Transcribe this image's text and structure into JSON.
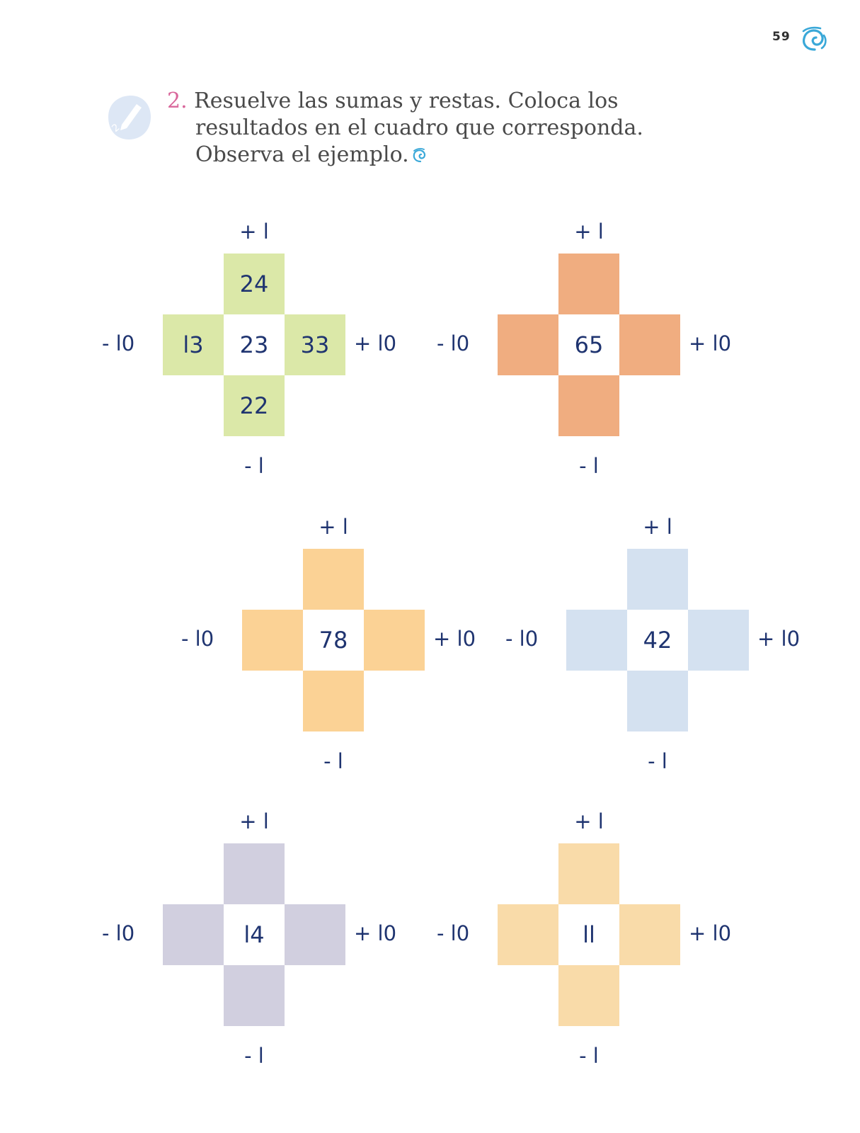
{
  "page_number": "59",
  "exercise": {
    "number": "2.",
    "line1": "Resuelve las sumas y restas. Coloca los",
    "line2": "resultados en el cuadro que corresponda.",
    "line3": "Observa el ejemplo."
  },
  "operations": {
    "plus_one": "+ l",
    "minus_one": "- l",
    "minus_ten": "- l0",
    "plus_ten": "+ l0"
  },
  "puzzles": [
    {
      "center": "23",
      "top": "24",
      "left": "l3",
      "right": "33",
      "bottom": "22",
      "color": "#dbe8a8"
    },
    {
      "center": "65",
      "top": "",
      "left": "",
      "right": "",
      "bottom": "",
      "color": "#f0ad80"
    },
    {
      "center": "78",
      "top": "",
      "left": "",
      "right": "",
      "bottom": "",
      "color": "#fbd295"
    },
    {
      "center": "42",
      "top": "",
      "left": "",
      "right": "",
      "bottom": "",
      "color": "#d4e1f0"
    },
    {
      "center": "l4",
      "top": "",
      "left": "",
      "right": "",
      "bottom": "",
      "color": "#d1cfdf"
    },
    {
      "center": "ll",
      "top": "",
      "left": "",
      "right": "",
      "bottom": "",
      "color": "#f9dba9"
    }
  ],
  "icons": {
    "logo": "spiral-swirl-icon",
    "badge": "pencil-badge-icon",
    "inline": "spiral-swirl-icon"
  },
  "colors": {
    "accent_number": "#d9679b",
    "operation_text": "#1f3470",
    "logo_blue": "#3aa8d8"
  }
}
